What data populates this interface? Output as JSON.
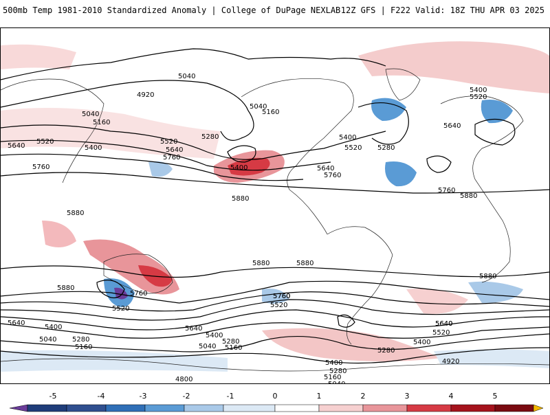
{
  "header": {
    "title_left": "500mb Temp 1981-2010 Standardized Anomaly | College of DuPage NEXLAB",
    "title_right": "12Z GFS | F222 Valid: 18Z THU APR 03 2025"
  },
  "colorbar": {
    "labels": [
      "-5",
      "-4",
      "-3",
      "-2",
      "-1",
      "0",
      "1",
      "2",
      "3",
      "4",
      "5"
    ],
    "colors": [
      "#6a3d9a",
      "#1f3d7a",
      "#2f6fb7",
      "#5a9bd5",
      "#a9c9e8",
      "#dce9f5",
      "#ffffff",
      "#f6d0d0",
      "#e8959a",
      "#d63a44",
      "#a5121c",
      "#7a0a10",
      "#f3b800"
    ]
  },
  "contour_labels": [
    "5040",
    "4920",
    "5040",
    "5040",
    "5160",
    "5400",
    "5520",
    "5520",
    "5640",
    "5400",
    "5760",
    "5520",
    "5280",
    "5640",
    "5760",
    "5400",
    "5160",
    "5400",
    "5520",
    "5280",
    "5640",
    "5760",
    "5640",
    "5880",
    "5880",
    "5760",
    "5880",
    "5880",
    "5880",
    "5880",
    "5880",
    "5760",
    "5520",
    "5760",
    "5520",
    "5640",
    "5400",
    "5040",
    "5280",
    "5160",
    "5640",
    "5400",
    "5280",
    "5040",
    "5160",
    "5520",
    "5640",
    "5400",
    "5280",
    "4920",
    "4800",
    "5400",
    "5280",
    "5160",
    "5040",
    "4920",
    "5760",
    "5640"
  ]
}
